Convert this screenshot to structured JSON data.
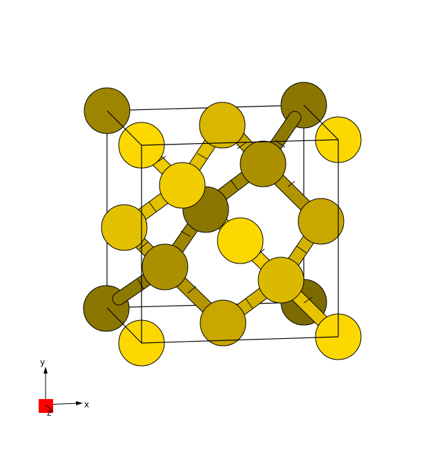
{
  "axes": {
    "x_label": "x",
    "y_label": "y",
    "z_label": "z"
  },
  "colors": {
    "atom_light": "#fcd800",
    "atom_mid": "#c7a700",
    "atom_dark": "#9d8500",
    "atom_darkest": "#7c6b00",
    "outline": "#000000",
    "cell_edge": "#000000",
    "z_marker": "#ff0000",
    "background": "#ffffff"
  }
}
